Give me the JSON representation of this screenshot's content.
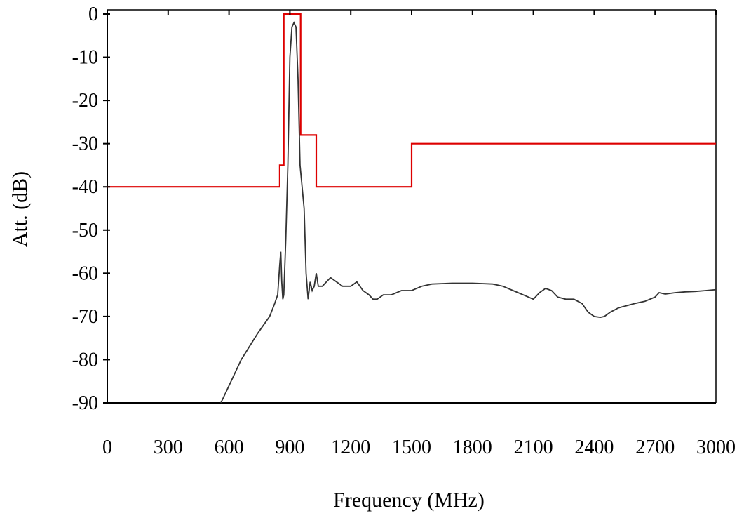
{
  "chart_data": {
    "type": "line",
    "title": "",
    "xlabel": "Frequency (MHz)",
    "ylabel": "Att. (dB)",
    "xlim": [
      0,
      3000
    ],
    "ylim": [
      -90,
      0
    ],
    "x_ticks": [
      0,
      300,
      600,
      900,
      1200,
      1500,
      1800,
      2100,
      2400,
      2700,
      3000
    ],
    "y_ticks": [
      0,
      -10,
      -20,
      -30,
      -40,
      -50,
      -60,
      -70,
      -80,
      -90
    ],
    "x_tick_labels": [
      "0",
      "300",
      "600",
      "900",
      "1200",
      "1500",
      "1800",
      "2100",
      "2400",
      "2700",
      "3000"
    ],
    "y_tick_labels": [
      "0",
      "-10",
      "-20",
      "-30",
      "-40",
      "-50",
      "-60",
      "-70",
      "-80",
      "-90"
    ],
    "grid": false,
    "series": [
      {
        "color": "#dd0000",
        "style": "step",
        "x": [
          0,
          850,
          850,
          870,
          870,
          953,
          953,
          1030,
          1030,
          1500,
          1500,
          3000
        ],
        "y": [
          -40,
          -40,
          -35,
          -35,
          0,
          0,
          -28,
          -28,
          -40,
          -40,
          -30,
          -30
        ]
      },
      {
        "color": "#333333",
        "style": "line",
        "x": [
          560,
          580,
          620,
          660,
          700,
          740,
          770,
          800,
          825,
          840,
          850,
          855,
          860,
          865,
          870,
          880,
          890,
          900,
          910,
          920,
          930,
          940,
          950,
          960,
          970,
          980,
          990,
          1000,
          1010,
          1020,
          1030,
          1040,
          1060,
          1080,
          1100,
          1130,
          1160,
          1200,
          1230,
          1260,
          1290,
          1310,
          1330,
          1360,
          1400,
          1450,
          1500,
          1550,
          1600,
          1700,
          1800,
          1900,
          1950,
          2000,
          2050,
          2100,
          2130,
          2160,
          2190,
          2220,
          2260,
          2300,
          2340,
          2370,
          2400,
          2430,
          2450,
          2480,
          2520,
          2560,
          2600,
          2650,
          2700,
          2720,
          2750,
          2800,
          2850,
          2900,
          2950,
          3000
        ],
        "y": [
          -90,
          -88,
          -84,
          -80,
          -77,
          -74,
          -72,
          -70,
          -67,
          -65,
          -58,
          -55,
          -62,
          -66,
          -65,
          -52,
          -35,
          -10,
          -3,
          -2,
          -3,
          -15,
          -35,
          -40,
          -45,
          -60,
          -66,
          -62,
          -64,
          -63,
          -60,
          -63,
          -63,
          -62,
          -61,
          -62,
          -63,
          -63,
          -62,
          -64,
          -65,
          -66,
          -66,
          -65,
          -65,
          -64,
          -64,
          -63,
          -62.5,
          -62.3,
          -62.3,
          -62.5,
          -63,
          -64,
          -65,
          -66,
          -64.5,
          -63.5,
          -64,
          -65.5,
          -66,
          -66,
          -67,
          -69,
          -70,
          -70.2,
          -70,
          -69,
          -68,
          -67.5,
          -67,
          -66.5,
          -65.5,
          -64.5,
          -64.8,
          -64.5,
          -64.3,
          -64.2,
          -64,
          -63.8
        ]
      }
    ]
  }
}
